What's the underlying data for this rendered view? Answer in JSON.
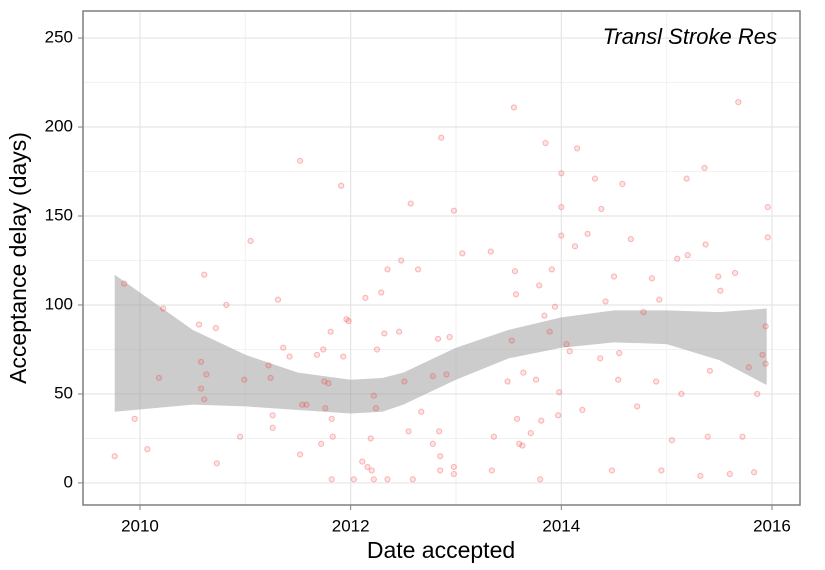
{
  "chart_data": {
    "type": "scatter",
    "annotation": "Transl Stroke Res",
    "x_label": "Date accepted",
    "y_label": "Acceptance delay (days)",
    "xlim": [
      2009.459,
      2016.266
    ],
    "ylim": [
      -12.4,
      265.2
    ],
    "xticks": [
      2010,
      2012,
      2014,
      2016
    ],
    "yticks": [
      0,
      50,
      100,
      150,
      200,
      250
    ],
    "x_minor_grid": [
      2011,
      2013,
      2015
    ],
    "y_minor_grid": [
      25,
      75,
      125,
      175,
      225
    ],
    "grid": true,
    "color": "#f04040",
    "x": [
      2009.76,
      2009.85,
      2009.95,
      2010.07,
      2010.18,
      2010.22,
      2010.56,
      2010.61,
      2010.58,
      2010.63,
      2010.58,
      2010.61,
      2010.72,
      2010.73,
      2010.82,
      2010.95,
      2010.99,
      2011.05,
      2011.22,
      2011.24,
      2011.26,
      2011.26,
      2011.31,
      2011.36,
      2011.42,
      2011.52,
      2011.52,
      2011.54,
      2011.58,
      2011.68,
      2011.72,
      2011.74,
      2011.75,
      2011.76,
      2011.79,
      2011.81,
      2011.82,
      2011.82,
      2011.83,
      2011.91,
      2011.93,
      2011.96,
      2011.98,
      2012.03,
      2012.11,
      2012.14,
      2012.16,
      2012.19,
      2012.2,
      2012.22,
      2012.22,
      2012.24,
      2012.25,
      2012.29,
      2012.32,
      2012.35,
      2012.35,
      2012.46,
      2012.48,
      2012.51,
      2012.55,
      2012.57,
      2012.59,
      2012.64,
      2012.67,
      2012.78,
      2012.78,
      2012.83,
      2012.84,
      2012.86,
      2012.85,
      2012.85,
      2012.91,
      2012.94,
      2012.98,
      2012.98,
      2012.98,
      2013.06,
      2013.33,
      2013.34,
      2013.36,
      2013.49,
      2013.53,
      2013.55,
      2013.56,
      2013.57,
      2013.58,
      2013.6,
      2013.63,
      2013.64,
      2013.71,
      2013.76,
      2013.79,
      2013.8,
      2013.81,
      2013.84,
      2013.85,
      2013.89,
      2013.91,
      2013.94,
      2013.97,
      2013.98,
      2014.0,
      2014.0,
      2014.0,
      2014.05,
      2014.08,
      2014.13,
      2014.15,
      2014.2,
      2014.25,
      2014.32,
      2014.37,
      2014.38,
      2014.42,
      2014.48,
      2014.5,
      2014.54,
      2014.55,
      2014.58,
      2014.66,
      2014.72,
      2014.78,
      2014.86,
      2014.9,
      2014.93,
      2014.95,
      2015.05,
      2015.1,
      2015.14,
      2015.19,
      2015.2,
      2015.32,
      2015.36,
      2015.37,
      2015.39,
      2015.41,
      2015.49,
      2015.51,
      2015.6,
      2015.65,
      2015.68,
      2015.72,
      2015.78,
      2015.83,
      2015.86,
      2015.91,
      2015.94,
      2015.96,
      2015.96,
      2015.94
    ],
    "values": [
      15,
      112,
      36,
      19,
      59,
      98,
      89,
      117,
      68,
      61,
      53,
      47,
      87,
      11,
      100,
      26,
      58,
      136,
      66,
      59,
      38,
      31,
      103,
      76,
      71,
      181,
      16,
      44,
      44,
      72,
      22,
      75,
      57,
      42,
      56,
      85,
      36,
      2,
      26,
      167,
      71,
      92,
      91,
      2,
      12,
      104,
      9,
      25,
      7,
      2,
      49,
      42,
      75,
      107,
      84,
      120,
      2,
      85,
      125,
      57,
      29,
      157,
      2,
      120,
      40,
      22,
      60,
      81,
      29,
      194,
      7,
      15,
      61,
      82,
      153,
      9,
      5,
      129,
      130,
      7,
      26,
      57,
      80,
      211,
      119,
      106,
      36,
      22,
      21,
      62,
      28,
      58,
      111,
      2,
      35,
      94,
      191,
      85,
      120,
      99,
      38,
      51,
      174,
      155,
      139,
      78,
      74,
      133,
      188,
      41,
      140,
      171,
      70,
      154,
      102,
      7,
      116,
      58,
      73,
      168,
      137,
      43,
      96,
      115,
      57,
      103,
      7,
      24,
      126,
      50,
      171,
      128,
      4,
      177,
      134,
      26,
      63,
      116,
      108,
      5,
      118,
      214,
      26,
      65,
      6,
      50,
      72,
      67,
      155,
      138,
      88
    ],
    "band": {
      "color": "#999999",
      "x": [
        2009.76,
        2010.5,
        2011.0,
        2011.5,
        2012.0,
        2012.3,
        2012.5,
        2013.0,
        2013.5,
        2014.0,
        2014.5,
        2015.0,
        2015.5,
        2015.95
      ],
      "upper": [
        117,
        86,
        72,
        62,
        58,
        59,
        62,
        76,
        86,
        93,
        97,
        97,
        96,
        98
      ],
      "lower": [
        40,
        44,
        43,
        41,
        39,
        40,
        44,
        58,
        70,
        76,
        79,
        78,
        69,
        55
      ]
    }
  }
}
